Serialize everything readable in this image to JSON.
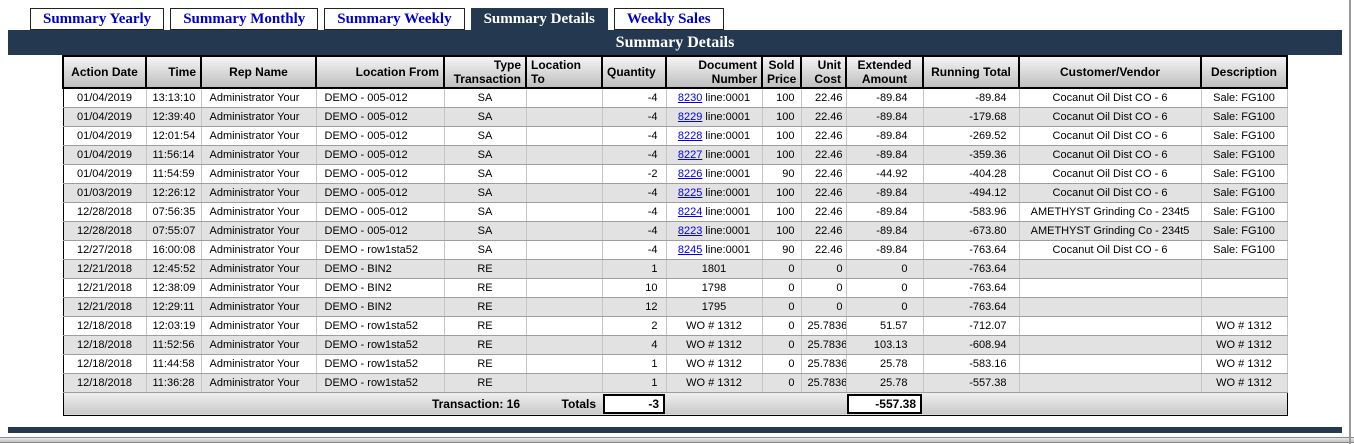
{
  "tabs": {
    "items": [
      {
        "label": "Summary Yearly",
        "active": false
      },
      {
        "label": "Summary Monthly",
        "active": false
      },
      {
        "label": "Summary Weekly",
        "active": false
      },
      {
        "label": "Summary Details",
        "active": true
      },
      {
        "label": "Weekly Sales",
        "active": false
      }
    ]
  },
  "header": {
    "title": "Summary Details"
  },
  "table": {
    "columns": [
      {
        "label": "Action Date"
      },
      {
        "label": "Time"
      },
      {
        "label": "Rep Name"
      },
      {
        "label": "Location From"
      },
      {
        "label": "Type\nTransaction"
      },
      {
        "label": "Location To"
      },
      {
        "label": "Quantity"
      },
      {
        "label": "Document\nNumber"
      },
      {
        "label": "Sold\nPrice"
      },
      {
        "label": "Unit\nCost"
      },
      {
        "label": "Extended\nAmount"
      },
      {
        "label": "Running Total"
      },
      {
        "label": "Customer/Vendor"
      },
      {
        "label": "Description"
      }
    ],
    "rows": [
      {
        "action_date": "01/04/2019",
        "time": "13:13:10",
        "rep_name": "Administrator Your",
        "location_from": "DEMO - 005-012",
        "type_transaction": "SA",
        "location_to": "",
        "quantity": "-4",
        "doc_link": "8230",
        "doc_suffix": "line:0001",
        "doc_text": "",
        "sold_price": "100",
        "unit_cost": "22.46",
        "extended_amount": "-89.84",
        "running_total": "-89.84",
        "customer_vendor": "Cocanut Oil Dist CO - 6",
        "description": "Sale: FG100"
      },
      {
        "action_date": "01/04/2019",
        "time": "12:39:40",
        "rep_name": "Administrator Your",
        "location_from": "DEMO - 005-012",
        "type_transaction": "SA",
        "location_to": "",
        "quantity": "-4",
        "doc_link": "8229",
        "doc_suffix": "line:0001",
        "doc_text": "",
        "sold_price": "100",
        "unit_cost": "22.46",
        "extended_amount": "-89.84",
        "running_total": "-179.68",
        "customer_vendor": "Cocanut Oil Dist CO - 6",
        "description": "Sale: FG100"
      },
      {
        "action_date": "01/04/2019",
        "time": "12:01:54",
        "rep_name": "Administrator Your",
        "location_from": "DEMO - 005-012",
        "type_transaction": "SA",
        "location_to": "",
        "quantity": "-4",
        "doc_link": "8228",
        "doc_suffix": "line:0001",
        "doc_text": "",
        "sold_price": "100",
        "unit_cost": "22.46",
        "extended_amount": "-89.84",
        "running_total": "-269.52",
        "customer_vendor": "Cocanut Oil Dist CO - 6",
        "description": "Sale: FG100"
      },
      {
        "action_date": "01/04/2019",
        "time": "11:56:14",
        "rep_name": "Administrator Your",
        "location_from": "DEMO - 005-012",
        "type_transaction": "SA",
        "location_to": "",
        "quantity": "-4",
        "doc_link": "8227",
        "doc_suffix": "line:0001",
        "doc_text": "",
        "sold_price": "100",
        "unit_cost": "22.46",
        "extended_amount": "-89.84",
        "running_total": "-359.36",
        "customer_vendor": "Cocanut Oil Dist CO - 6",
        "description": "Sale: FG100"
      },
      {
        "action_date": "01/04/2019",
        "time": "11:54:59",
        "rep_name": "Administrator Your",
        "location_from": "DEMO - 005-012",
        "type_transaction": "SA",
        "location_to": "",
        "quantity": "-2",
        "doc_link": "8226",
        "doc_suffix": "line:0001",
        "doc_text": "",
        "sold_price": "90",
        "unit_cost": "22.46",
        "extended_amount": "-44.92",
        "running_total": "-404.28",
        "customer_vendor": "Cocanut Oil Dist CO - 6",
        "description": "Sale: FG100"
      },
      {
        "action_date": "01/03/2019",
        "time": "12:26:12",
        "rep_name": "Administrator Your",
        "location_from": "DEMO - 005-012",
        "type_transaction": "SA",
        "location_to": "",
        "quantity": "-4",
        "doc_link": "8225",
        "doc_suffix": "line:0001",
        "doc_text": "",
        "sold_price": "100",
        "unit_cost": "22.46",
        "extended_amount": "-89.84",
        "running_total": "-494.12",
        "customer_vendor": "Cocanut Oil Dist CO - 6",
        "description": "Sale: FG100"
      },
      {
        "action_date": "12/28/2018",
        "time": "07:56:35",
        "rep_name": "Administrator Your",
        "location_from": "DEMO - 005-012",
        "type_transaction": "SA",
        "location_to": "",
        "quantity": "-4",
        "doc_link": "8224",
        "doc_suffix": "line:0001",
        "doc_text": "",
        "sold_price": "100",
        "unit_cost": "22.46",
        "extended_amount": "-89.84",
        "running_total": "-583.96",
        "customer_vendor": "AMETHYST Grinding Co - 234t5",
        "description": "Sale: FG100"
      },
      {
        "action_date": "12/28/2018",
        "time": "07:55:07",
        "rep_name": "Administrator Your",
        "location_from": "DEMO - 005-012",
        "type_transaction": "SA",
        "location_to": "",
        "quantity": "-4",
        "doc_link": "8223",
        "doc_suffix": "line:0001",
        "doc_text": "",
        "sold_price": "100",
        "unit_cost": "22.46",
        "extended_amount": "-89.84",
        "running_total": "-673.80",
        "customer_vendor": "AMETHYST Grinding Co - 234t5",
        "description": "Sale: FG100"
      },
      {
        "action_date": "12/27/2018",
        "time": "16:00:08",
        "rep_name": "Administrator Your",
        "location_from": "DEMO - row1sta52",
        "type_transaction": "SA",
        "location_to": "",
        "quantity": "-4",
        "doc_link": "8245",
        "doc_suffix": "line:0001",
        "doc_text": "",
        "sold_price": "90",
        "unit_cost": "22.46",
        "extended_amount": "-89.84",
        "running_total": "-763.64",
        "customer_vendor": "Cocanut Oil Dist CO - 6",
        "description": "Sale: FG100"
      },
      {
        "action_date": "12/21/2018",
        "time": "12:45:52",
        "rep_name": "Administrator Your",
        "location_from": "DEMO - BIN2",
        "type_transaction": "RE",
        "location_to": "",
        "quantity": "1",
        "doc_link": "",
        "doc_suffix": "",
        "doc_text": "1801",
        "sold_price": "0",
        "unit_cost": "0",
        "extended_amount": "0",
        "running_total": "-763.64",
        "customer_vendor": "",
        "description": ""
      },
      {
        "action_date": "12/21/2018",
        "time": "12:38:09",
        "rep_name": "Administrator Your",
        "location_from": "DEMO - BIN2",
        "type_transaction": "RE",
        "location_to": "",
        "quantity": "10",
        "doc_link": "",
        "doc_suffix": "",
        "doc_text": "1798",
        "sold_price": "0",
        "unit_cost": "0",
        "extended_amount": "0",
        "running_total": "-763.64",
        "customer_vendor": "",
        "description": ""
      },
      {
        "action_date": "12/21/2018",
        "time": "12:29:11",
        "rep_name": "Administrator Your",
        "location_from": "DEMO - BIN2",
        "type_transaction": "RE",
        "location_to": "",
        "quantity": "12",
        "doc_link": "",
        "doc_suffix": "",
        "doc_text": "1795",
        "sold_price": "0",
        "unit_cost": "0",
        "extended_amount": "0",
        "running_total": "-763.64",
        "customer_vendor": "",
        "description": ""
      },
      {
        "action_date": "12/18/2018",
        "time": "12:03:19",
        "rep_name": "Administrator Your",
        "location_from": "DEMO - row1sta52",
        "type_transaction": "RE",
        "location_to": "",
        "quantity": "2",
        "doc_link": "",
        "doc_suffix": "",
        "doc_text": "WO # 1312",
        "sold_price": "0",
        "unit_cost": "25.7836",
        "extended_amount": "51.57",
        "running_total": "-712.07",
        "customer_vendor": "",
        "description": "WO # 1312"
      },
      {
        "action_date": "12/18/2018",
        "time": "11:52:56",
        "rep_name": "Administrator Your",
        "location_from": "DEMO - row1sta52",
        "type_transaction": "RE",
        "location_to": "",
        "quantity": "4",
        "doc_link": "",
        "doc_suffix": "",
        "doc_text": "WO # 1312",
        "sold_price": "0",
        "unit_cost": "25.7836",
        "extended_amount": "103.13",
        "running_total": "-608.94",
        "customer_vendor": "",
        "description": "WO # 1312"
      },
      {
        "action_date": "12/18/2018",
        "time": "11:44:58",
        "rep_name": "Administrator Your",
        "location_from": "DEMO - row1sta52",
        "type_transaction": "RE",
        "location_to": "",
        "quantity": "1",
        "doc_link": "",
        "doc_suffix": "",
        "doc_text": "WO # 1312",
        "sold_price": "0",
        "unit_cost": "25.7836",
        "extended_amount": "25.78",
        "running_total": "-583.16",
        "customer_vendor": "",
        "description": "WO # 1312"
      },
      {
        "action_date": "12/18/2018",
        "time": "11:36:28",
        "rep_name": "Administrator Your",
        "location_from": "DEMO - row1sta52",
        "type_transaction": "RE",
        "location_to": "",
        "quantity": "1",
        "doc_link": "",
        "doc_suffix": "",
        "doc_text": "WO # 1312",
        "sold_price": "0",
        "unit_cost": "25.7836",
        "extended_amount": "25.78",
        "running_total": "-557.38",
        "customer_vendor": "",
        "description": "WO # 1312"
      }
    ]
  },
  "footer": {
    "transaction_label": "Transaction: 16",
    "totals_label": "Totals",
    "quantity_total": "-3",
    "amount_total": "-557.38"
  },
  "colors": {
    "navy": "#24394F",
    "tab_text_blue": "#0000CC",
    "link_blue": "#0000EE",
    "row_alt_gray": "#E2E2E2"
  }
}
